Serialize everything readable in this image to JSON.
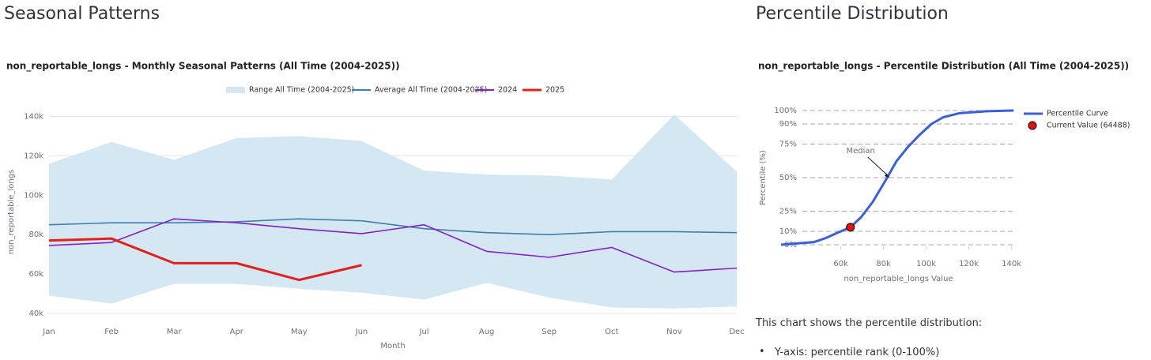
{
  "left_header": "Seasonal Patterns",
  "right_header": "Percentile Distribution",
  "description": "This chart shows the percentile distribution:",
  "bullets": [
    "Y-axis: percentile rank (0-100%)"
  ],
  "chart_data": [
    {
      "type": "line",
      "title": "non_reportable_longs - Monthly Seasonal Patterns (All Time (2004-2025))",
      "xlabel": "Month",
      "ylabel": "non_reportable_longs",
      "categories": [
        "Jan",
        "Feb",
        "Mar",
        "Apr",
        "May",
        "Jun",
        "Jul",
        "Aug",
        "Sep",
        "Oct",
        "Nov",
        "Dec"
      ],
      "ylim": [
        40000,
        143000
      ],
      "yticks": [
        {
          "value": 40000,
          "label": "40k"
        },
        {
          "value": 60000,
          "label": "60k"
        },
        {
          "value": 80000,
          "label": "80k"
        },
        {
          "value": 100000,
          "label": "100k"
        },
        {
          "value": 120000,
          "label": "120k"
        },
        {
          "value": 140000,
          "label": "140k"
        }
      ],
      "grid": true,
      "legend": "top",
      "series": [
        {
          "name": "Range All Time (2004-2025)",
          "type": "range",
          "color": "#d3e8f3",
          "upper": [
            116000,
            127000,
            118000,
            129000,
            130000,
            127500,
            112500,
            110500,
            110000,
            108000,
            141000,
            112000
          ],
          "lower": [
            49000,
            45000,
            55000,
            55000,
            52500,
            50500,
            47000,
            55500,
            48000,
            43000,
            42500,
            43500
          ]
        },
        {
          "name": "Average All Time (2004-2025)",
          "color": "#3f7fad",
          "values": [
            85000,
            86000,
            86000,
            86500,
            88000,
            87000,
            83000,
            81000,
            80000,
            81500,
            81500,
            81000
          ]
        },
        {
          "name": "2024",
          "color": "#8a1fc4",
          "values": [
            74500,
            76000,
            88000,
            86000,
            83000,
            80500,
            85000,
            71500,
            68500,
            73500,
            61000,
            63000
          ]
        },
        {
          "name": "2025",
          "color": "#e3201c",
          "width": 3,
          "values": [
            77000,
            78000,
            65500,
            65500,
            57000,
            64500,
            null,
            null,
            null,
            null,
            null,
            null
          ]
        }
      ]
    },
    {
      "type": "line",
      "title": "non_reportable_longs - Percentile Distribution (All Time (2004-2025))",
      "xlabel": "non_reportable_longs Value",
      "ylabel": "Percentile (%)",
      "xlim": [
        32000,
        142000
      ],
      "ylim": [
        0,
        100
      ],
      "xticks": [
        {
          "value": 60000,
          "label": "60k"
        },
        {
          "value": 80000,
          "label": "80k"
        },
        {
          "value": 100000,
          "label": "100k"
        },
        {
          "value": 120000,
          "label": "120k"
        },
        {
          "value": 140000,
          "label": "140k"
        }
      ],
      "yticks": [
        {
          "value": 0,
          "label": "0%"
        },
        {
          "value": 10,
          "label": "10%"
        },
        {
          "value": 25,
          "label": "25%"
        },
        {
          "value": 50,
          "label": "50%"
        },
        {
          "value": 75,
          "label": "75%"
        },
        {
          "value": 90,
          "label": "90%"
        },
        {
          "value": 100,
          "label": "100%"
        }
      ],
      "grid": true,
      "legend": "right",
      "series": [
        {
          "name": "Percentile Curve",
          "color": "#3b5fd9",
          "width": 3,
          "x": [
            32000,
            47500,
            53000,
            58500,
            64500,
            69500,
            75000,
            81000,
            86000,
            91500,
            97000,
            102500,
            108000,
            115500,
            128500,
            141000
          ],
          "values": [
            0,
            2,
            5,
            9,
            13,
            20.5,
            32,
            48,
            62,
            73,
            82,
            90,
            95,
            98,
            99.5,
            100
          ]
        },
        {
          "name": "Current Value (64488)",
          "type": "marker",
          "color": "#e3120b",
          "x": [
            64488
          ],
          "values": [
            13
          ]
        }
      ],
      "annotations": [
        {
          "text": "Median",
          "x": 83000,
          "y": 50
        }
      ]
    }
  ]
}
